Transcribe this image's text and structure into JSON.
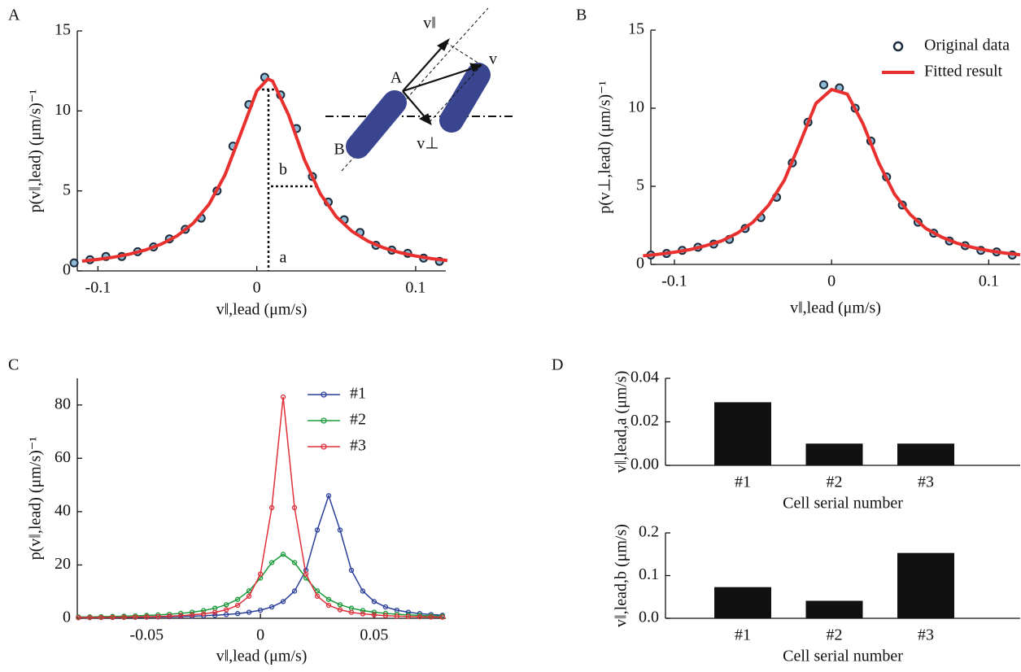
{
  "chart_data": [
    {
      "panel": "A",
      "type": "line",
      "xlabel": "v‖,lead (μm/s)",
      "ylabel": "p(v‖,lead) (μm/s)⁻¹",
      "xlim": [
        -0.113,
        0.119
      ],
      "ylim": [
        0,
        15
      ],
      "xticks": [
        -0.1,
        0,
        0.1
      ],
      "yticks": [
        0,
        5,
        10,
        15
      ],
      "annotations": [
        "a",
        "b",
        "A",
        "B",
        "v‖",
        "v",
        "v⊥"
      ],
      "series": [
        {
          "style": "markers",
          "color": "#1c2c3c",
          "marker_fill": "#8dbbd6",
          "x": [
            -0.115,
            -0.105,
            -0.095,
            -0.085,
            -0.075,
            -0.065,
            -0.055,
            -0.045,
            -0.035,
            -0.025,
            -0.015,
            -0.005,
            0.005,
            0.015,
            0.025,
            0.035,
            0.045,
            0.055,
            0.065,
            0.075,
            0.085,
            0.095,
            0.105,
            0.115
          ],
          "values": [
            0.5,
            0.7,
            0.9,
            0.9,
            1.2,
            1.5,
            2.0,
            2.6,
            3.3,
            5.0,
            7.8,
            10.4,
            12.1,
            11.0,
            8.9,
            5.9,
            4.3,
            3.2,
            2.4,
            1.6,
            1.3,
            1.1,
            0.8,
            0.6
          ]
        },
        {
          "style": "line",
          "color": "#e8312f",
          "x": [
            -0.11,
            -0.1,
            -0.09,
            -0.08,
            -0.07,
            -0.06,
            -0.05,
            -0.04,
            -0.03,
            -0.02,
            -0.01,
            0,
            0.007,
            0.01,
            0.02,
            0.03,
            0.04,
            0.05,
            0.06,
            0.07,
            0.08,
            0.09,
            0.1,
            0.11,
            0.12
          ],
          "values": [
            0.61,
            0.72,
            0.86,
            1.05,
            1.31,
            1.68,
            2.2,
            2.98,
            4.17,
            6.0,
            8.6,
            11.25,
            12,
            11.86,
            9.75,
            6.95,
            4.82,
            3.39,
            2.47,
            1.86,
            1.44,
            1.15,
            0.93,
            0.77,
            0.65
          ]
        }
      ]
    },
    {
      "panel": "B",
      "type": "line",
      "xlabel": "v‖,lead (μm/s)",
      "ylabel": "p(v⊥,lead) (μm/s)⁻¹",
      "xlim": [
        -0.115,
        0.12
      ],
      "ylim": [
        0,
        15
      ],
      "xticks": [
        -0.1,
        0,
        0.1
      ],
      "yticks": [
        0,
        5,
        10,
        15
      ],
      "legend": "upper right",
      "series": [
        {
          "name": "Original data",
          "style": "markers",
          "color": "#1c2c3c",
          "marker_fill": "#8dbbd6",
          "x": [
            -0.115,
            -0.105,
            -0.095,
            -0.085,
            -0.075,
            -0.065,
            -0.055,
            -0.045,
            -0.035,
            -0.025,
            -0.015,
            -0.005,
            0.005,
            0.015,
            0.025,
            0.035,
            0.045,
            0.055,
            0.065,
            0.075,
            0.085,
            0.095,
            0.105,
            0.115
          ],
          "values": [
            0.6,
            0.7,
            0.9,
            1.1,
            1.3,
            1.6,
            2.3,
            3.0,
            4.3,
            6.5,
            9.1,
            11.5,
            11.3,
            10.0,
            7.9,
            5.6,
            3.8,
            2.7,
            2.0,
            1.5,
            1.2,
            0.9,
            0.8,
            0.6
          ]
        },
        {
          "name": "Fitted result",
          "style": "line",
          "color": "#e8312f",
          "x": [
            -0.12,
            -0.11,
            -0.1,
            -0.09,
            -0.08,
            -0.07,
            -0.06,
            -0.05,
            -0.04,
            -0.03,
            -0.02,
            -0.01,
            0,
            0.01,
            0.02,
            0.03,
            0.04,
            0.05,
            0.06,
            0.07,
            0.08,
            0.09,
            0.1,
            0.11,
            0.12
          ],
          "values": [
            0.55,
            0.65,
            0.78,
            0.95,
            1.2,
            1.5,
            2.0,
            2.7,
            3.8,
            5.4,
            7.8,
            10.3,
            11.2,
            10.9,
            9.0,
            6.5,
            4.5,
            3.2,
            2.3,
            1.75,
            1.35,
            1.08,
            0.88,
            0.73,
            0.62
          ]
        }
      ]
    },
    {
      "panel": "C",
      "type": "line",
      "xlabel": "v‖,lead (μm/s)",
      "ylabel": "p(v‖,lead) (μm/s)⁻¹",
      "xlim": [
        -0.0805,
        0.0815
      ],
      "ylim": [
        0,
        90
      ],
      "xticks": [
        -0.05,
        0,
        0.05
      ],
      "yticks": [
        0,
        20,
        40,
        60,
        80
      ],
      "legend": "upper right",
      "x": [
        -0.08,
        -0.075,
        -0.07,
        -0.065,
        -0.06,
        -0.055,
        -0.05,
        -0.045,
        -0.04,
        -0.035,
        -0.03,
        -0.025,
        -0.02,
        -0.015,
        -0.01,
        -0.005,
        0,
        0.005,
        0.01,
        0.015,
        0.02,
        0.025,
        0.03,
        0.035,
        0.04,
        0.045,
        0.05,
        0.055,
        0.06,
        0.065,
        0.07,
        0.075,
        0.08
      ],
      "series": [
        {
          "name": "#1",
          "style": "line_markers",
          "color": "#2b3f9a",
          "values": [
            0.24,
            0.27,
            0.29,
            0.32,
            0.36,
            0.4,
            0.46,
            0.52,
            0.59,
            0.69,
            0.81,
            0.96,
            1.15,
            1.41,
            1.77,
            2.29,
            3.05,
            4.26,
            6.3,
            10.2,
            18.0,
            33.1,
            46,
            33.1,
            18.0,
            10.2,
            6.3,
            4.26,
            3.05,
            2.29,
            1.77,
            1.41,
            1.15
          ]
        },
        {
          "name": "#2",
          "style": "line_markers",
          "color": "#1a9a3a",
          "values": [
            0.49,
            0.55,
            0.62,
            0.7,
            0.8,
            0.92,
            1.08,
            1.27,
            1.52,
            1.85,
            2.29,
            2.91,
            3.79,
            5.1,
            7.1,
            10.3,
            15.1,
            20.9,
            24,
            20.9,
            15.1,
            10.3,
            7.1,
            5.1,
            3.79,
            2.91,
            2.29,
            1.85,
            1.52,
            1.27,
            1.08,
            0.92,
            0.8
          ]
        },
        {
          "name": "#3",
          "style": "line_markers",
          "color": "#e0303a",
          "values": [
            0.25,
            0.29,
            0.32,
            0.37,
            0.42,
            0.49,
            0.57,
            0.68,
            0.82,
            1.01,
            1.28,
            1.66,
            2.24,
            3.19,
            4.88,
            8.3,
            16.6,
            41.5,
            83,
            41.5,
            16.6,
            8.3,
            4.88,
            3.19,
            2.24,
            1.66,
            1.28,
            1.01,
            0.82,
            0.68,
            0.57,
            0.49,
            0.42
          ]
        }
      ]
    },
    {
      "panel": "D",
      "type": "bar",
      "xlabel": "Cell serial number",
      "ylabel": "v‖,lead,a (μm/s)",
      "categories": [
        "#1",
        "#2",
        "#3"
      ],
      "values": [
        0.029,
        0.01,
        0.01
      ],
      "color": "#111111",
      "ylim": [
        0,
        0.04
      ],
      "yticks": [
        {
          "value": 0,
          "label": "0.00"
        },
        0.02,
        0.04
      ]
    },
    {
      "type": "bar",
      "xlabel": "Cell serial number",
      "ylabel": "v‖,lead,b (μm/s)",
      "categories": [
        "#1",
        "#2",
        "#3"
      ],
      "values": [
        0.073,
        0.041,
        0.153
      ],
      "color": "#111111",
      "ylim": [
        0,
        0.2
      ],
      "yticks": [
        {
          "value": 0,
          "label": "0.0"
        },
        0.1,
        0.2
      ]
    }
  ]
}
